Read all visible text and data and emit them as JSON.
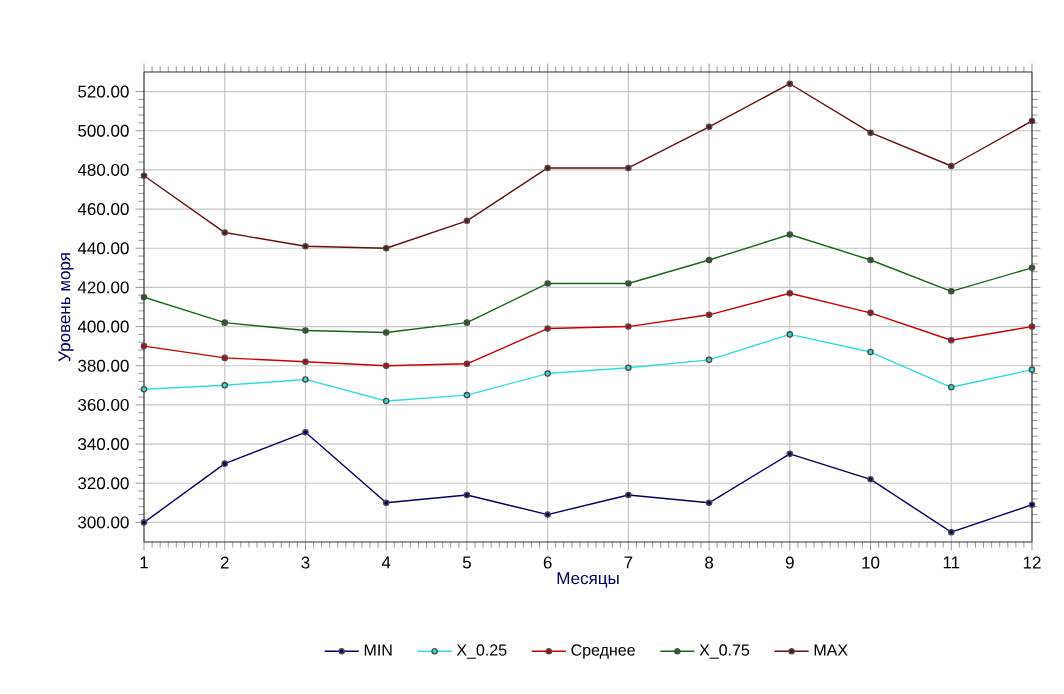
{
  "chart_data": {
    "type": "line",
    "xlabel": "Месяцы",
    "ylabel": "Уровень моря",
    "x": [
      1,
      2,
      3,
      4,
      5,
      6,
      7,
      8,
      9,
      10,
      11,
      12
    ],
    "series": [
      {
        "name": "MIN",
        "color": "#000066",
        "values": [
          300,
          330,
          346,
          310,
          314,
          304,
          314,
          310,
          335,
          322,
          295,
          309
        ]
      },
      {
        "name": "X_0.25",
        "color": "#33dddd",
        "values": [
          368,
          370,
          373,
          362,
          365,
          376,
          379,
          383,
          396,
          387,
          369,
          378
        ]
      },
      {
        "name": "Среднее",
        "color": "#cc0000",
        "values": [
          390,
          384,
          382,
          380,
          381,
          399,
          400,
          406,
          417,
          407,
          393,
          400
        ]
      },
      {
        "name": "X_0.75",
        "color": "#1a661a",
        "values": [
          415,
          402,
          398,
          397,
          402,
          422,
          422,
          434,
          447,
          434,
          418,
          430
        ]
      },
      {
        "name": "MAX",
        "color": "#661111",
        "values": [
          477,
          448,
          441,
          440,
          454,
          481,
          481,
          502,
          524,
          499,
          482,
          505
        ]
      }
    ],
    "xlim": [
      1,
      12
    ],
    "ylim": [
      290,
      530
    ],
    "xticks": [
      1,
      2,
      3,
      4,
      5,
      6,
      7,
      8,
      9,
      10,
      11,
      12
    ],
    "yticks": [
      {
        "value": 300,
        "label": "300.00"
      },
      {
        "value": 320,
        "label": "320.00"
      },
      {
        "value": 340,
        "label": "340.00"
      },
      {
        "value": 360,
        "label": "360.00"
      },
      {
        "value": 380,
        "label": "380.00"
      },
      {
        "value": 400,
        "label": "400.00"
      },
      {
        "value": 420,
        "label": "420.00"
      },
      {
        "value": 440,
        "label": "440.00"
      },
      {
        "value": 460,
        "label": "460.00"
      },
      {
        "value": 480,
        "label": "480.00"
      },
      {
        "value": 500,
        "label": "500.00"
      },
      {
        "value": 520,
        "label": "520.00"
      }
    ],
    "grid": true,
    "legend": "bottom",
    "marker": "circle",
    "line_style": "solid"
  }
}
